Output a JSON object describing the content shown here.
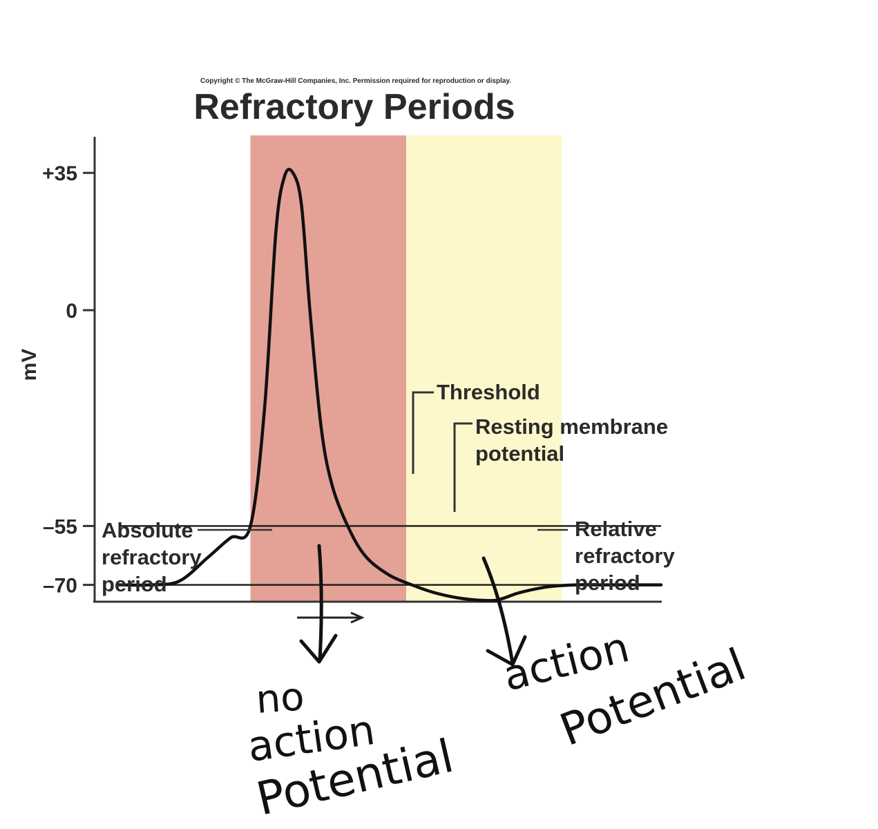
{
  "copyright": "Copyright © The McGraw-Hill Companies, Inc. Permission required for reproduction or display.",
  "chart_data": {
    "type": "line",
    "title": "Refractory Periods",
    "ylabel": "mV",
    "xlabel": "",
    "yticks": [
      35,
      0,
      -55,
      -70
    ],
    "ytick_labels": [
      "+35",
      "0",
      "–55",
      "–70"
    ],
    "ylim": [
      -92,
      44
    ],
    "xlim": [
      0,
      100
    ],
    "reference_lines": [
      {
        "name": "Threshold",
        "y": -55
      },
      {
        "name": "Resting membrane potential",
        "y": -70
      }
    ],
    "regions": [
      {
        "name": "Absolute refractory period",
        "x": [
          27.5,
          55
        ],
        "color": "#e4a296"
      },
      {
        "name": "Relative refractory period",
        "x": [
          55,
          82.5
        ],
        "color": "#fdf8cc"
      }
    ],
    "series": [
      {
        "x": [
          4.3,
          10,
          15,
          20,
          24,
          27.5,
          30,
          32,
          33.5,
          35,
          36.5,
          38,
          40,
          42,
          45,
          48,
          52,
          56,
          60,
          65,
          70,
          72,
          75,
          80,
          85,
          90,
          100
        ],
        "y": [
          -70,
          -70,
          -69,
          -63,
          -58,
          -55,
          -25,
          20,
          34,
          35,
          27,
          0,
          -30,
          -45,
          -56,
          -63,
          -67.5,
          -70,
          -72,
          -73.5,
          -74,
          -73.5,
          -72,
          -70.5,
          -70,
          -70,
          -70
        ]
      }
    ],
    "annotations": [
      {
        "text": "Threshold"
      },
      {
        "text": "Resting membrane potential"
      },
      {
        "text": "Absolute refractory period"
      },
      {
        "text": "Relative refractory period"
      }
    ]
  },
  "handwritten_notes": [
    {
      "lines": [
        "no",
        "action",
        "Potential"
      ]
    },
    {
      "lines": [
        "action",
        "Potential"
      ]
    }
  ],
  "colors": {
    "absolute_region": "#e4a296",
    "relative_region": "#fdf8cc",
    "curve": "#111111",
    "axis": "#333333"
  }
}
